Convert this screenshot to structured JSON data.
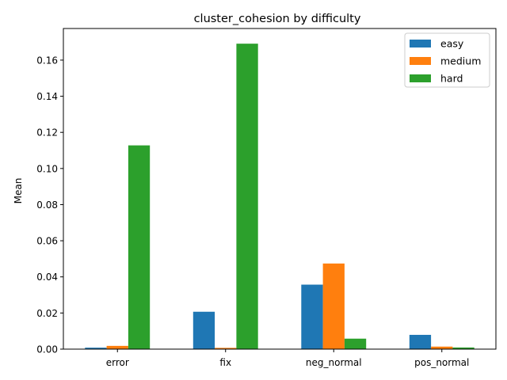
{
  "chart_data": {
    "type": "bar",
    "title": "cluster_cohesion by difficulty",
    "xlabel": "",
    "ylabel": "Mean",
    "categories": [
      "error",
      "fix",
      "neg_normal",
      "pos_normal"
    ],
    "series": [
      {
        "name": "easy",
        "color": "#1f77b4",
        "values": [
          0.0008,
          0.0207,
          0.0357,
          0.0079
        ]
      },
      {
        "name": "medium",
        "color": "#ff7f0e",
        "values": [
          0.0018,
          0.0007,
          0.0474,
          0.0014
        ]
      },
      {
        "name": "hard",
        "color": "#2ca02c",
        "values": [
          0.1128,
          0.1691,
          0.0058,
          0.0009
        ]
      }
    ],
    "ylim": [
      0,
      0.1775
    ],
    "yticks": [
      0.0,
      0.02,
      0.04,
      0.06,
      0.08,
      0.1,
      0.12,
      0.14,
      0.16
    ],
    "ytick_labels": [
      "0.00",
      "0.02",
      "0.04",
      "0.06",
      "0.08",
      "0.10",
      "0.12",
      "0.14",
      "0.16"
    ],
    "grid": false,
    "legend_position": "top-right"
  }
}
